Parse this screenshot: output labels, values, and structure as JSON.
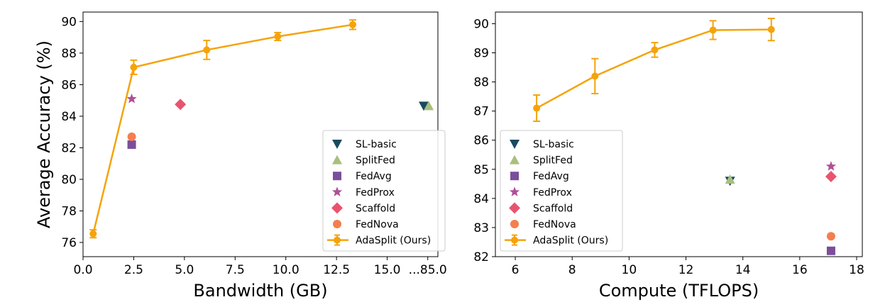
{
  "colors": {
    "sl_basic": "#1a4a5f",
    "splitfed": "#a8bf7e",
    "fedavg": "#7b4e9b",
    "fedprox": "#b04f98",
    "scaffold": "#e8546f",
    "fednova": "#f47f4e",
    "adasplit": "#f5a30a"
  },
  "chart_data": [
    {
      "type": "scatter",
      "xlabel": "Bandwidth (GB)",
      "ylabel": "Average Accuracy (%)",
      "xlim": [
        0,
        17.5
      ],
      "ylim": [
        75.1,
        90.6
      ],
      "xtick_values": [
        0,
        2.5,
        5,
        7.5,
        10,
        12.5,
        15,
        17
      ],
      "xticks": [
        "0.0",
        "2.5",
        "5.0",
        "7.5",
        "10.0",
        "12.5",
        "15.0",
        "...85.0"
      ],
      "ytick_values": [
        76,
        78,
        80,
        82,
        84,
        86,
        88,
        90
      ],
      "yticks": [
        "76",
        "78",
        "80",
        "82",
        "84",
        "86",
        "88",
        "90"
      ],
      "axis_break_note": "x-axis is broken: final tick reads ...85.0",
      "legend_position": "lower-right",
      "series": [
        {
          "name": "SL-basic",
          "marker": "triangle-down",
          "color_key": "sl_basic",
          "x": [
            16.8
          ],
          "y": [
            84.65
          ]
        },
        {
          "name": "SplitFed",
          "marker": "triangle-up",
          "color_key": "splitfed",
          "x": [
            17.05
          ],
          "y": [
            84.65
          ]
        },
        {
          "name": "FedAvg",
          "marker": "square",
          "color_key": "fedavg",
          "x": [
            2.4
          ],
          "y": [
            82.2
          ]
        },
        {
          "name": "FedProx",
          "marker": "star",
          "color_key": "fedprox",
          "x": [
            2.4
          ],
          "y": [
            85.1
          ]
        },
        {
          "name": "Scaffold",
          "marker": "diamond",
          "color_key": "scaffold",
          "x": [
            4.8
          ],
          "y": [
            84.75
          ]
        },
        {
          "name": "FedNova",
          "marker": "circle",
          "color_key": "fednova",
          "x": [
            2.4
          ],
          "y": [
            82.7
          ]
        },
        {
          "name": "AdaSplit (Ours)",
          "marker": "line-errorbar",
          "color_key": "adasplit",
          "x": [
            0.5,
            2.5,
            6.1,
            9.6,
            13.3
          ],
          "y": [
            76.55,
            87.1,
            88.2,
            89.05,
            89.8
          ],
          "err": [
            0.25,
            0.45,
            0.6,
            0.25,
            0.3
          ]
        }
      ]
    },
    {
      "type": "scatter",
      "xlabel": "Compute (TFLOPS)",
      "ylabel": "",
      "xlim": [
        5.3,
        18.2
      ],
      "ylim": [
        82.0,
        90.4
      ],
      "xtick_values": [
        6,
        8,
        10,
        12,
        14,
        16,
        18
      ],
      "xticks": [
        "6",
        "8",
        "10",
        "12",
        "14",
        "16",
        "18"
      ],
      "ytick_values": [
        82,
        83,
        84,
        85,
        86,
        87,
        88,
        89,
        90
      ],
      "yticks": [
        "82",
        "83",
        "84",
        "85",
        "86",
        "87",
        "88",
        "89",
        "90"
      ],
      "legend_position": "lower-left",
      "series": [
        {
          "name": "SL-basic",
          "marker": "triangle-down",
          "color_key": "sl_basic",
          "x": [
            13.55
          ],
          "y": [
            84.6
          ]
        },
        {
          "name": "SplitFed",
          "marker": "triangle-up",
          "color_key": "splitfed",
          "x": [
            13.55
          ],
          "y": [
            84.65
          ]
        },
        {
          "name": "FedAvg",
          "marker": "square",
          "color_key": "fedavg",
          "x": [
            17.1
          ],
          "y": [
            82.2
          ]
        },
        {
          "name": "FedProx",
          "marker": "star",
          "color_key": "fedprox",
          "x": [
            17.1
          ],
          "y": [
            85.1
          ]
        },
        {
          "name": "Scaffold",
          "marker": "diamond",
          "color_key": "scaffold",
          "x": [
            17.1
          ],
          "y": [
            84.75
          ]
        },
        {
          "name": "FedNova",
          "marker": "circle",
          "color_key": "fednova",
          "x": [
            17.1
          ],
          "y": [
            82.7
          ]
        },
        {
          "name": "AdaSplit (Ours)",
          "marker": "line-errorbar",
          "color_key": "adasplit",
          "x": [
            6.75,
            8.8,
            10.9,
            12.95,
            15.0
          ],
          "y": [
            87.1,
            88.2,
            89.1,
            89.78,
            89.8
          ],
          "err": [
            0.45,
            0.6,
            0.25,
            0.32,
            0.38
          ]
        }
      ]
    }
  ]
}
